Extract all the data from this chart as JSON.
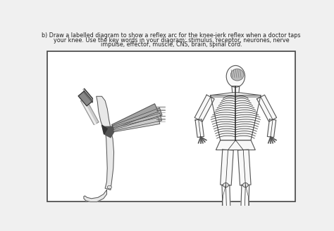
{
  "bg_color": "#f0f0f0",
  "box_color": "#ffffff",
  "border_color": "#444444",
  "text_color": "#222222",
  "title_line1": "b) Draw a labelled diagram to show a reflex arc for the knee-jerk reflex when a doctor taps",
  "title_line2": "your knee. Use the key words in your diagram: stimulus, receptor, neurones, nerve",
  "title_line3": "impulse, effector, muscle, CNS, brain, spinal cord.",
  "figsize": [
    4.74,
    3.29
  ],
  "dpi": 100,
  "body_outline": "#555555",
  "body_fill": "#f8f8f8",
  "nerve_color": "#333333",
  "muscle_dark": "#888888",
  "muscle_light": "#cccccc",
  "brain_fill": "#aaaaaa"
}
